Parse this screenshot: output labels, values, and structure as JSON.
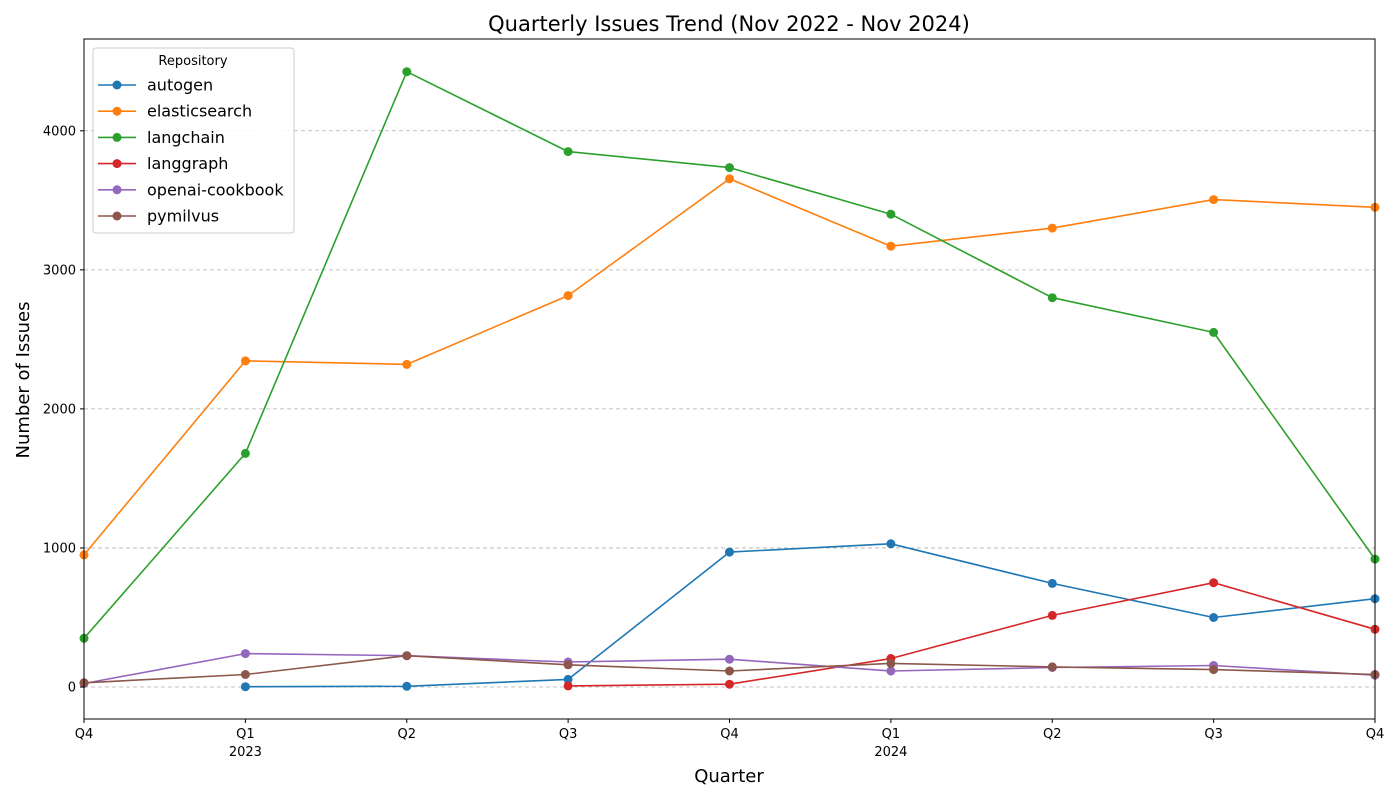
{
  "chart_data": {
    "type": "line",
    "title": "Quarterly Issues Trend (Nov 2022 - Nov 2024)",
    "xlabel": "Quarter",
    "ylabel": "Number of Issues",
    "categories": [
      "Q4",
      "Q1",
      "Q2",
      "Q3",
      "Q4",
      "Q1",
      "Q2",
      "Q3",
      "Q4"
    ],
    "year_labels": [
      "",
      "2023",
      "",
      "",
      "",
      "2024",
      "",
      "",
      ""
    ],
    "yticks": [
      0,
      1000,
      2000,
      3000,
      4000
    ],
    "ylim": [
      -230,
      4660
    ],
    "grid": "y-axis dashed",
    "legend": {
      "title": "Repository",
      "placement": "top-left"
    },
    "series": [
      {
        "name": "autogen",
        "color": "#1f77b4",
        "values": [
          null,
          2,
          5,
          55,
          970,
          1030,
          745,
          500,
          635
        ]
      },
      {
        "name": "elasticsearch",
        "color": "#ff7f0e",
        "values": [
          950,
          2345,
          2320,
          2815,
          3655,
          3170,
          3300,
          3505,
          3450
        ]
      },
      {
        "name": "langchain",
        "color": "#2ca02c",
        "values": [
          350,
          1680,
          4425,
          3850,
          3735,
          3400,
          2800,
          2550,
          920
        ]
      },
      {
        "name": "langgraph",
        "color": "#d62728",
        "values": [
          null,
          null,
          null,
          8,
          20,
          205,
          515,
          750,
          415
        ]
      },
      {
        "name": "openai-cookbook",
        "color": "#9467bd",
        "values": [
          25,
          240,
          225,
          180,
          200,
          115,
          140,
          155,
          85
        ]
      },
      {
        "name": "pymilvus",
        "color": "#8c564b",
        "values": [
          30,
          90,
          225,
          160,
          115,
          170,
          145,
          125,
          90
        ]
      }
    ]
  }
}
